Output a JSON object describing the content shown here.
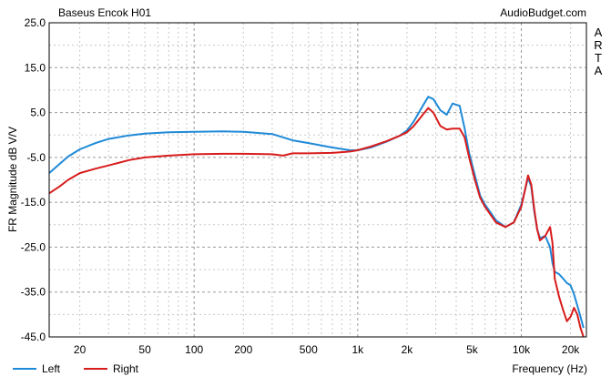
{
  "chart_data": {
    "type": "line",
    "title": "Baseus Encok H01",
    "source_label": "AudioBudget.com",
    "side_label": "ARTA",
    "ylabel": "FR Magnitude dB V/V",
    "xlabel": "Frequency (Hz)",
    "x_scale": "log",
    "xlim": [
      13,
      25000
    ],
    "ylim": [
      -45,
      25
    ],
    "y_ticks": [
      {
        "value": 25,
        "label": "25.0"
      },
      {
        "value": 15,
        "label": "15.0"
      },
      {
        "value": 5,
        "label": "5.0"
      },
      {
        "value": -5,
        "label": "-5.0"
      },
      {
        "value": -15,
        "label": "-15.0"
      },
      {
        "value": -25,
        "label": "-25.0"
      },
      {
        "value": -35,
        "label": "-35.0"
      },
      {
        "value": -45,
        "label": "-45.0"
      }
    ],
    "x_ticks": [
      {
        "value": 20,
        "label": "20"
      },
      {
        "value": 50,
        "label": "50"
      },
      {
        "value": 100,
        "label": "100"
      },
      {
        "value": 200,
        "label": "200"
      },
      {
        "value": 500,
        "label": "500"
      },
      {
        "value": 1000,
        "label": "1k"
      },
      {
        "value": 2000,
        "label": "2k"
      },
      {
        "value": 5000,
        "label": "5k"
      },
      {
        "value": 10000,
        "label": "10k"
      },
      {
        "value": 20000,
        "label": "20k"
      }
    ],
    "grid": true,
    "legend_position": "bottom-left",
    "series": [
      {
        "name": "Left",
        "color": "#1f8ad8",
        "x": [
          13,
          15,
          17,
          20,
          25,
          30,
          40,
          50,
          70,
          100,
          150,
          200,
          300,
          400,
          500,
          700,
          900,
          1000,
          1200,
          1500,
          1800,
          2000,
          2200,
          2500,
          2700,
          2900,
          3200,
          3500,
          3800,
          4200,
          4500,
          4800,
          5200,
          5600,
          6000,
          7000,
          8000,
          9000,
          10000,
          10500,
          11000,
          11500,
          12000,
          12500,
          13000,
          14000,
          15000,
          15500,
          16000,
          17000,
          18000,
          19000,
          20000,
          21000,
          22000,
          23000,
          24000
        ],
        "y": [
          -8.5,
          -6.5,
          -4.8,
          -3.2,
          -1.8,
          -0.9,
          -0.1,
          0.3,
          0.6,
          0.7,
          0.8,
          0.7,
          0.2,
          -1.2,
          -1.8,
          -2.8,
          -3.4,
          -3.4,
          -2.8,
          -1.5,
          -0.2,
          1.0,
          3.0,
          6.5,
          8.5,
          8.0,
          5.5,
          4.5,
          7.0,
          6.5,
          1.5,
          -4.0,
          -9.0,
          -13.5,
          -15.5,
          -19.0,
          -20.5,
          -19.5,
          -15.5,
          -12.5,
          -9.5,
          -11.5,
          -17.0,
          -21.0,
          -23.0,
          -22.5,
          -25.0,
          -28.5,
          -30.5,
          -31.0,
          -32.0,
          -33.0,
          -33.5,
          -35.5,
          -38.0,
          -40.5,
          -43.0
        ]
      },
      {
        "name": "Right",
        "color": "#d81c1c",
        "x": [
          13,
          15,
          17,
          20,
          25,
          30,
          40,
          50,
          70,
          100,
          150,
          200,
          300,
          350,
          400,
          500,
          700,
          900,
          1000,
          1200,
          1500,
          1800,
          2000,
          2200,
          2500,
          2700,
          2900,
          3200,
          3500,
          3800,
          4200,
          4500,
          4800,
          5200,
          5600,
          6000,
          7000,
          8000,
          9000,
          10000,
          10500,
          11000,
          11500,
          12000,
          12500,
          13000,
          14000,
          15000,
          15500,
          16000,
          17000,
          18000,
          19000,
          20000,
          21000,
          22000,
          23000,
          24000
        ],
        "y": [
          -13.0,
          -11.5,
          -10.0,
          -8.5,
          -7.5,
          -6.8,
          -5.6,
          -5.0,
          -4.6,
          -4.3,
          -4.2,
          -4.2,
          -4.3,
          -4.6,
          -4.1,
          -4.1,
          -4.0,
          -3.7,
          -3.4,
          -2.6,
          -1.4,
          -0.2,
          0.6,
          2.0,
          4.5,
          6.0,
          5.0,
          2.0,
          1.2,
          1.4,
          1.4,
          -0.5,
          -5.0,
          -10.0,
          -14.0,
          -16.0,
          -19.5,
          -20.5,
          -19.5,
          -16.0,
          -12.5,
          -9.0,
          -11.0,
          -16.5,
          -21.0,
          -23.5,
          -22.5,
          -20.5,
          -24.0,
          -32.0,
          -36.0,
          -39.0,
          -41.5,
          -40.5,
          -38.5,
          -40.0,
          -43.0,
          -45.0
        ]
      }
    ]
  }
}
